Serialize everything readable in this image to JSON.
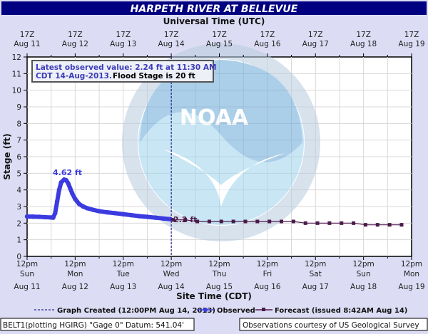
{
  "chart_data": {
    "type": "line",
    "title": "HARPETH RIVER AT BELLEVUE",
    "top_axis_label": "Universal Time (UTC)",
    "top_ticks": [
      [
        "17Z",
        "Aug 11"
      ],
      [
        "17Z",
        "Aug 12"
      ],
      [
        "17Z",
        "Aug 13"
      ],
      [
        "17Z",
        "Aug 14"
      ],
      [
        "17Z",
        "Aug 15"
      ],
      [
        "17Z",
        "Aug 16"
      ],
      [
        "17Z",
        "Aug 17"
      ],
      [
        "17Z",
        "Aug 18"
      ],
      [
        "17Z",
        "Aug 19"
      ]
    ],
    "xlabel": "Site Time (CDT)",
    "bottom_ticks": [
      [
        "12pm",
        "Sun",
        "Aug 11"
      ],
      [
        "12pm",
        "Mon",
        "Aug 12"
      ],
      [
        "12pm",
        "Tue",
        "Aug 13"
      ],
      [
        "12pm",
        "Wed",
        "Aug 14"
      ],
      [
        "12pm",
        "Thu",
        "Aug 15"
      ],
      [
        "12pm",
        "Fri",
        "Aug 16"
      ],
      [
        "12pm",
        "Sat",
        "Aug 17"
      ],
      [
        "12pm",
        "Sun",
        "Aug 18"
      ],
      [
        "12pm",
        "Mon",
        "Aug 19"
      ]
    ],
    "xlim": [
      "2013-08-11T12:00",
      "2013-08-19T12:00"
    ],
    "ylabel": "Stage (ft)",
    "ylim": [
      0,
      12
    ],
    "yticks": [
      0,
      1,
      2,
      3,
      4,
      5,
      6,
      7,
      8,
      9,
      10,
      11,
      12
    ],
    "grid": true,
    "info_box": {
      "line1": "Latest observed value: 2.24 ft at 11:30 AM",
      "line2_a": "CDT 14-Aug-2013.",
      "line2_b": "Flood Stage is 20 ft"
    },
    "annotations": {
      "peak": "4.62 ft",
      "forecast_start": "2.2 ft"
    },
    "graph_created": "2013-08-14T12:00",
    "legend": {
      "created": "Graph Created (12:00PM Aug 14, 2013)",
      "observed": "Observed",
      "forecast": "Forecast (issued 8:42AM Aug 14)",
      "placement": "bottom"
    },
    "colors": {
      "observed": "#3b3be0",
      "forecast": "#4a1a4a",
      "title_bar": "#000080",
      "created_line": "#000080"
    },
    "series": [
      {
        "name": "Observed",
        "points": [
          [
            "2013-08-11T12:00",
            2.4
          ],
          [
            "2013-08-11T15:00",
            2.39
          ],
          [
            "2013-08-11T18:00",
            2.38
          ],
          [
            "2013-08-11T21:00",
            2.36
          ],
          [
            "2013-08-12T00:00",
            2.34
          ],
          [
            "2013-08-12T01:00",
            2.33
          ],
          [
            "2013-08-12T02:00",
            2.6
          ],
          [
            "2013-08-12T03:00",
            3.3
          ],
          [
            "2013-08-12T04:00",
            4.0
          ],
          [
            "2013-08-12T05:00",
            4.45
          ],
          [
            "2013-08-12T06:30",
            4.62
          ],
          [
            "2013-08-12T07:30",
            4.58
          ],
          [
            "2013-08-12T08:30",
            4.4
          ],
          [
            "2013-08-12T09:30",
            4.1
          ],
          [
            "2013-08-12T10:30",
            3.8
          ],
          [
            "2013-08-12T12:00",
            3.45
          ],
          [
            "2013-08-12T14:00",
            3.15
          ],
          [
            "2013-08-12T16:00",
            3.0
          ],
          [
            "2013-08-12T18:00",
            2.9
          ],
          [
            "2013-08-12T21:00",
            2.8
          ],
          [
            "2013-08-13T00:00",
            2.72
          ],
          [
            "2013-08-13T04:00",
            2.65
          ],
          [
            "2013-08-13T08:00",
            2.6
          ],
          [
            "2013-08-13T12:00",
            2.54
          ],
          [
            "2013-08-13T16:00",
            2.48
          ],
          [
            "2013-08-13T20:00",
            2.42
          ],
          [
            "2013-08-14T00:00",
            2.38
          ],
          [
            "2013-08-14T04:00",
            2.33
          ],
          [
            "2013-08-14T08:00",
            2.28
          ],
          [
            "2013-08-14T11:30",
            2.24
          ]
        ]
      },
      {
        "name": "Forecast",
        "points": [
          [
            "2013-08-14T13:00",
            2.2
          ],
          [
            "2013-08-14T19:00",
            2.2
          ],
          [
            "2013-08-15T01:00",
            2.1
          ],
          [
            "2013-08-15T07:00",
            2.1
          ],
          [
            "2013-08-15T13:00",
            2.1
          ],
          [
            "2013-08-15T19:00",
            2.1
          ],
          [
            "2013-08-16T01:00",
            2.1
          ],
          [
            "2013-08-16T07:00",
            2.1
          ],
          [
            "2013-08-16T13:00",
            2.1
          ],
          [
            "2013-08-16T19:00",
            2.1
          ],
          [
            "2013-08-17T01:00",
            2.1
          ],
          [
            "2013-08-17T07:00",
            2.0
          ],
          [
            "2013-08-17T13:00",
            2.0
          ],
          [
            "2013-08-17T19:00",
            2.0
          ],
          [
            "2013-08-18T01:00",
            2.0
          ],
          [
            "2013-08-18T07:00",
            2.0
          ],
          [
            "2013-08-18T13:00",
            1.9
          ],
          [
            "2013-08-18T19:00",
            1.9
          ],
          [
            "2013-08-19T01:00",
            1.9
          ],
          [
            "2013-08-19T07:00",
            1.9
          ]
        ]
      }
    ]
  },
  "footer": {
    "left": "BELT1(plotting HGIRG) \"Gage 0\" Datum: 541.04'",
    "right": "Observations courtesy of US Geological Survey"
  }
}
